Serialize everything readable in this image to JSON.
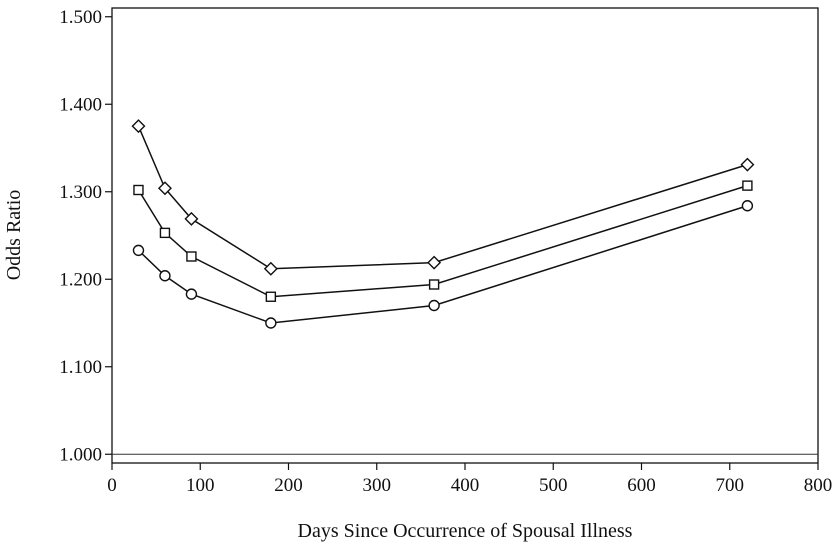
{
  "chart_data": {
    "type": "line",
    "title": "",
    "xlabel": "Days Since Occurrence of Spousal Illness",
    "ylabel": "Odds Ratio",
    "xlim": [
      0,
      800
    ],
    "ylim": [
      0.99,
      1.51
    ],
    "x_ticks": [
      0,
      100,
      200,
      300,
      400,
      500,
      600,
      700,
      800
    ],
    "y_ticks": [
      "1.000",
      "1.100",
      "1.200",
      "1.300",
      "1.400",
      "1.500"
    ],
    "reference_line": 1.0,
    "grid": false,
    "legend": "none",
    "x": [
      30,
      60,
      90,
      180,
      365,
      720
    ],
    "series": [
      {
        "marker": "diamond",
        "values": [
          1.375,
          1.304,
          1.269,
          1.212,
          1.219,
          1.331
        ]
      },
      {
        "marker": "square",
        "values": [
          1.302,
          1.253,
          1.226,
          1.18,
          1.194,
          1.307
        ]
      },
      {
        "marker": "circle",
        "values": [
          1.233,
          1.204,
          1.183,
          1.15,
          1.17,
          1.284
        ]
      }
    ]
  }
}
